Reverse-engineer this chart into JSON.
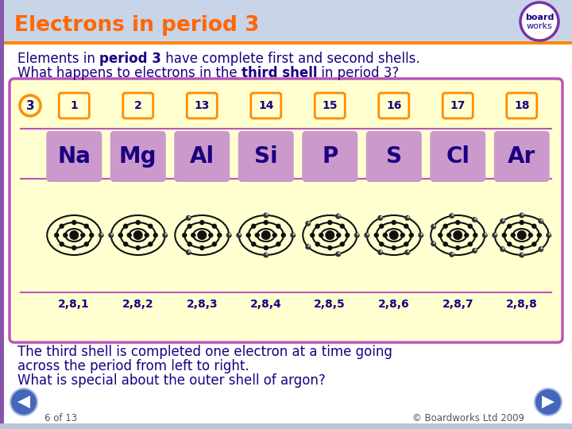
{
  "title": "Electrons in period 3",
  "title_color": "#FF6600",
  "header_bg": "#D0D8EC",
  "group_numbers": [
    "1",
    "2",
    "13",
    "14",
    "15",
    "16",
    "17",
    "18"
  ],
  "period_number": "3",
  "elements": [
    "Na",
    "Mg",
    "Al",
    "Si",
    "P",
    "S",
    "Cl",
    "Ar"
  ],
  "electron_configs": [
    "2,8,1",
    "2,8,2",
    "2,8,3",
    "2,8,4",
    "2,8,5",
    "2,8,6",
    "2,8,7",
    "2,8,8"
  ],
  "outer_electrons": [
    1,
    2,
    3,
    4,
    5,
    6,
    7,
    8
  ],
  "box_bg": "#FFFFD0",
  "box_border": "#BB55BB",
  "element_bg": "#CC99CC",
  "element_text_color": "#1a0080",
  "group_border_color": "#FF8C00",
  "body_text_color": "#1a0080",
  "footer_text": "6 of 13",
  "footer_right": "© Boardworks Ltd 2009",
  "bg_color": "#B8C4D8",
  "white_bg": "#FFFFFF"
}
